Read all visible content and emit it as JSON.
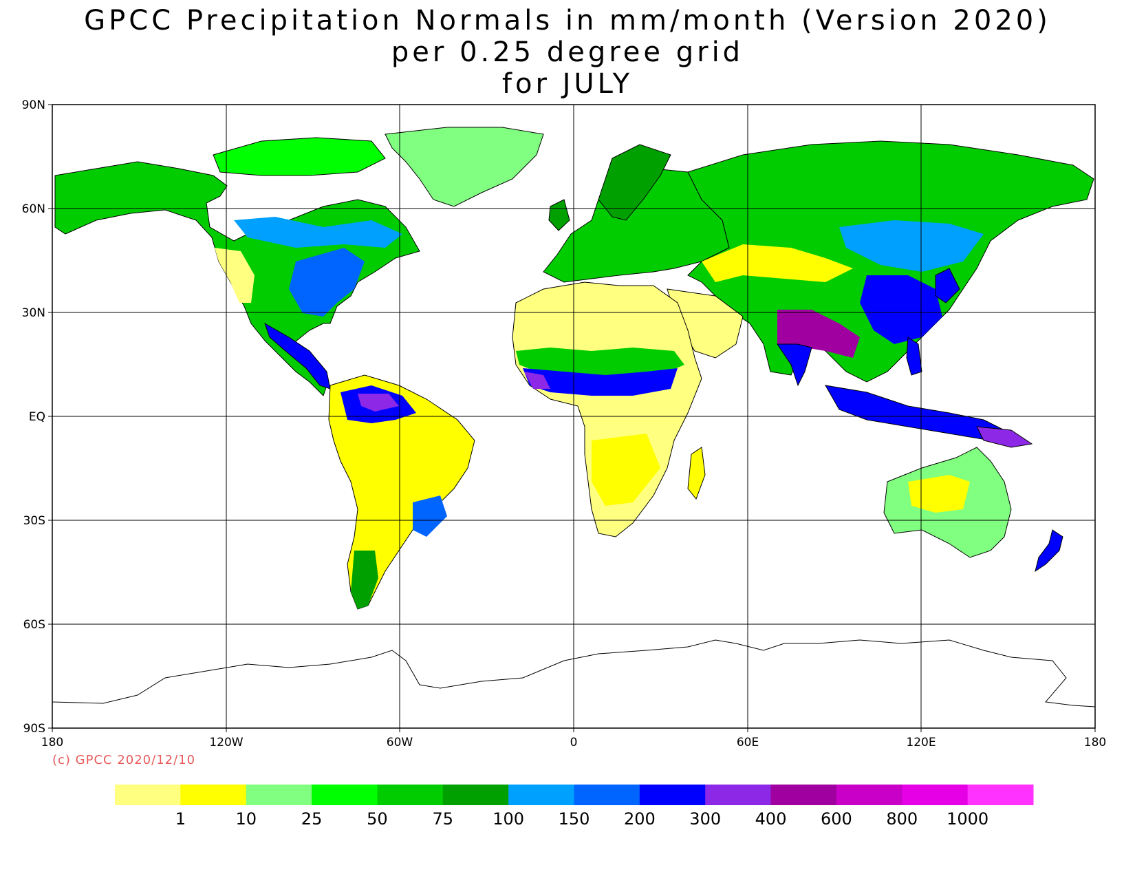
{
  "title": {
    "line1": "GPCC Precipitation Normals in mm/month (Version 2020)",
    "line2": "per 0.25 degree grid",
    "line3": "for JULY"
  },
  "lat_labels": [
    "90N",
    "60N",
    "30N",
    "EQ",
    "30S",
    "60S",
    "90S"
  ],
  "lon_labels": [
    "180",
    "120W",
    "60W",
    "0",
    "60E",
    "120E",
    "180"
  ],
  "copyright": "(c) GPCC 2020/12/10",
  "legend": {
    "colors": [
      "#ffff80",
      "#ffff00",
      "#80ff80",
      "#00ff00",
      "#00cc00",
      "#00a000",
      "#00a0ff",
      "#0064ff",
      "#0000ff",
      "#8c28e6",
      "#a000a0",
      "#c800c8",
      "#e600e6",
      "#ff32ff"
    ],
    "thresholds": [
      "1",
      "10",
      "25",
      "50",
      "75",
      "100",
      "150",
      "200",
      "300",
      "400",
      "600",
      "800",
      "1000"
    ]
  },
  "ocean_color": "#ffffff",
  "land_outline_color": "#000000"
}
